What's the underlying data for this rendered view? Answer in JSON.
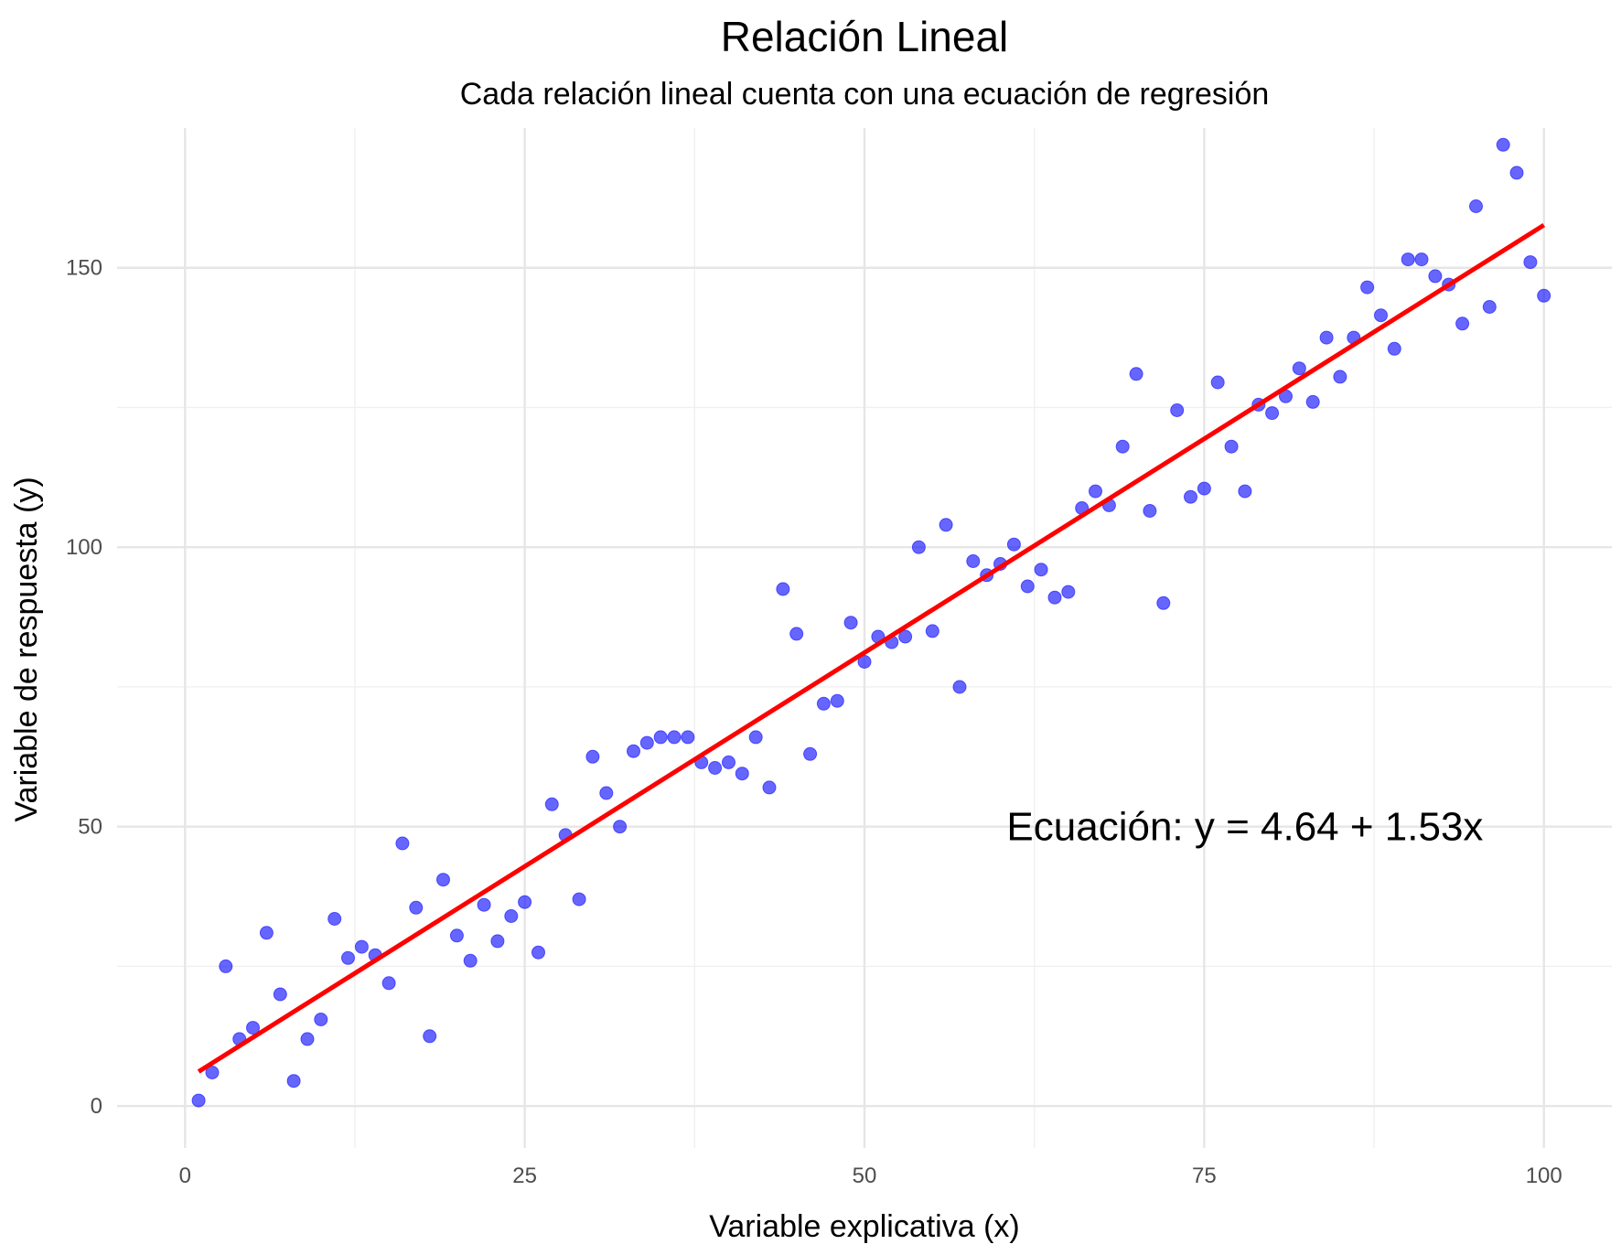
{
  "chart_data": {
    "type": "scatter",
    "title": "Relación Lineal",
    "subtitle": "Cada relación lineal cuenta con una ecuación de regresión",
    "xlabel": "Variable explicativa (x)",
    "ylabel": "Variable de respuesta (y)",
    "xlim": [
      -5,
      105
    ],
    "ylim": [
      -7.5,
      175
    ],
    "x_ticks": [
      0,
      25,
      50,
      75,
      100
    ],
    "y_ticks": [
      0,
      50,
      100,
      150
    ],
    "x_tick_labels": [
      "0",
      "25",
      "50",
      "75",
      "100"
    ],
    "y_tick_labels": [
      "0",
      "50",
      "100",
      "150"
    ],
    "x_minor_ticks": [
      12.5,
      37.5,
      62.5,
      87.5
    ],
    "y_minor_ticks": [
      25,
      75,
      125
    ],
    "grid": true,
    "point_color": "#0000ff",
    "line_color": "#ff0000",
    "annotation": {
      "text": "Ecuación:  y = 4.64 + 1.53x",
      "x": 78,
      "y": 50
    },
    "regression_line": {
      "intercept": 4.64,
      "slope": 1.53,
      "x_range": [
        1,
        100
      ]
    },
    "points": [
      [
        1,
        1
      ],
      [
        2,
        6
      ],
      [
        3,
        25
      ],
      [
        4,
        12
      ],
      [
        5,
        14
      ],
      [
        6,
        31
      ],
      [
        7,
        20
      ],
      [
        8,
        4.5
      ],
      [
        9,
        12
      ],
      [
        10,
        15.5
      ],
      [
        11,
        33.5
      ],
      [
        12,
        26.5
      ],
      [
        13,
        28.5
      ],
      [
        14,
        27
      ],
      [
        15,
        22
      ],
      [
        16,
        47
      ],
      [
        17,
        35.5
      ],
      [
        18,
        12.5
      ],
      [
        19,
        40.5
      ],
      [
        20,
        30.5
      ],
      [
        21,
        26
      ],
      [
        22,
        36
      ],
      [
        23,
        29.5
      ],
      [
        24,
        34
      ],
      [
        25,
        36.5
      ],
      [
        26,
        27.5
      ],
      [
        27,
        54
      ],
      [
        28,
        48.5
      ],
      [
        29,
        37
      ],
      [
        30,
        62.5
      ],
      [
        31,
        56
      ],
      [
        32,
        50
      ],
      [
        33,
        63.5
      ],
      [
        34,
        65
      ],
      [
        35,
        66
      ],
      [
        36,
        66
      ],
      [
        37,
        66
      ],
      [
        38,
        61.5
      ],
      [
        39,
        60.5
      ],
      [
        40,
        61.5
      ],
      [
        41,
        59.5
      ],
      [
        42,
        66
      ],
      [
        43,
        57
      ],
      [
        44,
        92.5
      ],
      [
        45,
        84.5
      ],
      [
        46,
        63
      ],
      [
        47,
        72
      ],
      [
        48,
        72.5
      ],
      [
        49,
        86.5
      ],
      [
        50,
        79.5
      ],
      [
        51,
        84
      ],
      [
        52,
        83
      ],
      [
        53,
        84
      ],
      [
        54,
        100
      ],
      [
        55,
        85
      ],
      [
        56,
        104
      ],
      [
        57,
        75
      ],
      [
        58,
        97.5
      ],
      [
        59,
        95
      ],
      [
        60,
        97
      ],
      [
        61,
        100.5
      ],
      [
        62,
        93
      ],
      [
        63,
        96
      ],
      [
        64,
        91
      ],
      [
        65,
        92
      ],
      [
        66,
        107
      ],
      [
        67,
        110
      ],
      [
        68,
        107.5
      ],
      [
        69,
        118
      ],
      [
        70,
        131
      ],
      [
        71,
        106.5
      ],
      [
        72,
        90
      ],
      [
        73,
        124.5
      ],
      [
        74,
        109
      ],
      [
        75,
        110.5
      ],
      [
        76,
        129.5
      ],
      [
        77,
        118
      ],
      [
        78,
        110
      ],
      [
        79,
        125.5
      ],
      [
        80,
        124
      ],
      [
        81,
        127
      ],
      [
        82,
        132
      ],
      [
        83,
        126
      ],
      [
        84,
        137.5
      ],
      [
        85,
        130.5
      ],
      [
        86,
        137.5
      ],
      [
        87,
        146.5
      ],
      [
        88,
        141.5
      ],
      [
        89,
        135.5
      ],
      [
        90,
        151.5
      ],
      [
        91,
        151.5
      ],
      [
        92,
        148.5
      ],
      [
        93,
        147
      ],
      [
        94,
        140
      ],
      [
        95,
        161
      ],
      [
        96,
        143
      ],
      [
        97,
        172
      ],
      [
        98,
        167
      ],
      [
        99,
        151
      ],
      [
        100,
        145
      ]
    ]
  }
}
